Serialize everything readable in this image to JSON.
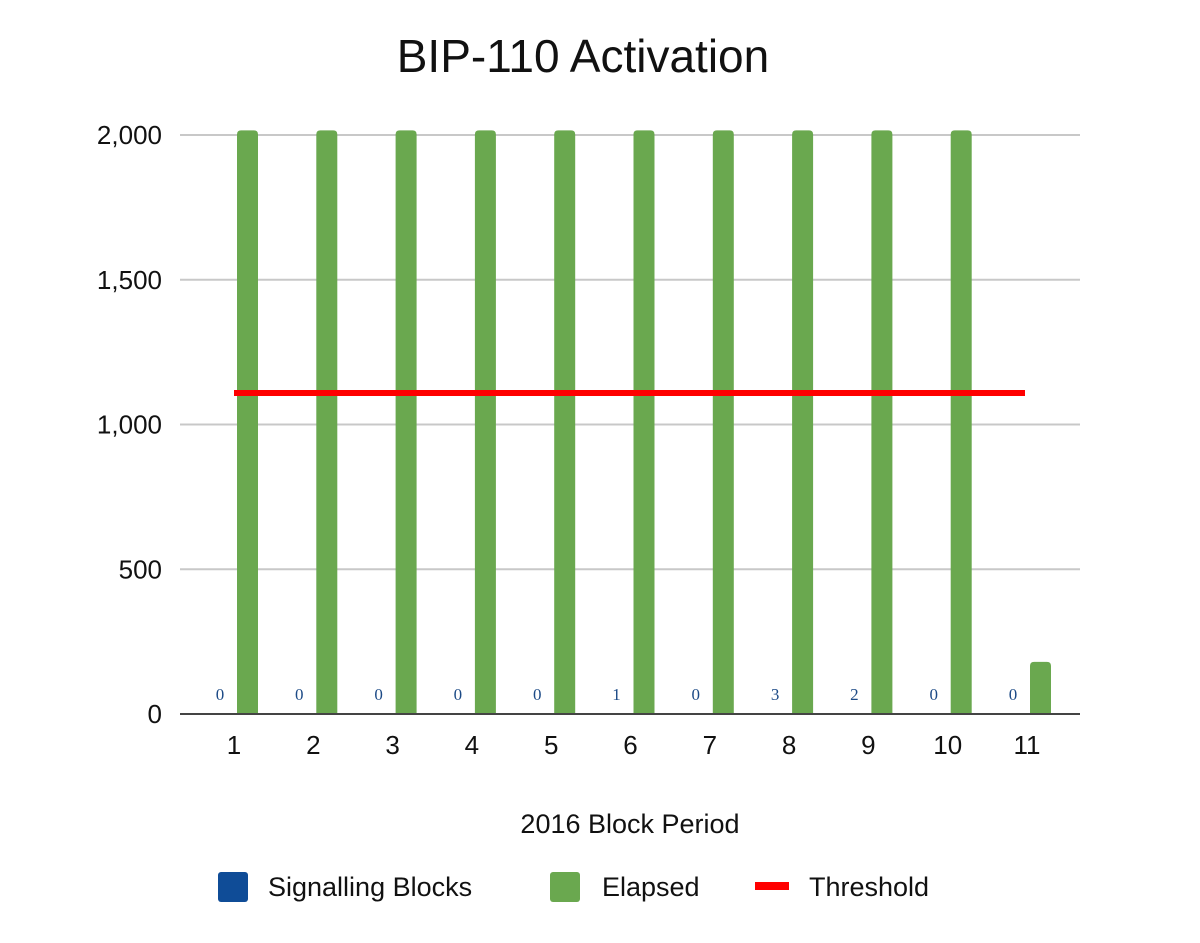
{
  "chart_data": {
    "type": "bar",
    "title": "BIP-110 Activation",
    "xlabel": "2016 Block Period",
    "ylabel": "",
    "ylim": [
      0,
      2000
    ],
    "yticks": [
      0,
      500,
      1000,
      1500,
      2000
    ],
    "ytick_labels": [
      "0",
      "500",
      "1,000",
      "1,500",
      "2,000"
    ],
    "categories": [
      "1",
      "2",
      "3",
      "4",
      "5",
      "6",
      "7",
      "8",
      "9",
      "10",
      "11"
    ],
    "series": [
      {
        "name": "Signalling Blocks",
        "kind": "bar",
        "color": "#0f4c97",
        "values": [
          0,
          0,
          0,
          0,
          0,
          1,
          0,
          3,
          2,
          0,
          0
        ],
        "data_labels": [
          "0",
          "0",
          "0",
          "0",
          "0",
          "1",
          "0",
          "3",
          "2",
          "0",
          "0"
        ]
      },
      {
        "name": "Elapsed",
        "kind": "bar",
        "color": "#6aa84f",
        "values": [
          2016,
          2016,
          2016,
          2016,
          2016,
          2016,
          2016,
          2016,
          2016,
          2016,
          180
        ]
      },
      {
        "name": "Threshold",
        "kind": "line",
        "color": "#ff0000",
        "values": [
          1109,
          1109,
          1109,
          1109,
          1109,
          1109,
          1109,
          1109,
          1109,
          1109,
          1109
        ]
      }
    ],
    "grid": true,
    "legend_position": "bottom"
  }
}
